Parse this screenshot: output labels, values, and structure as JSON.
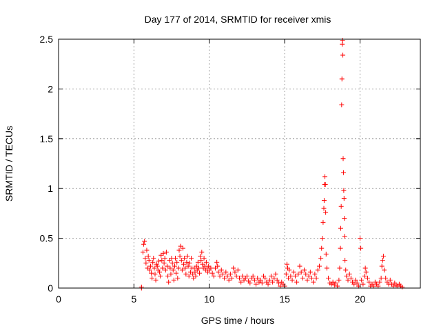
{
  "chart_data": {
    "type": "scatter",
    "title": "Day 177 of 2014, SRMTID for receiver xmis",
    "xlabel": "GPS time / hours",
    "ylabel": "SRMTID / TECUs",
    "xlim": [
      0,
      24
    ],
    "ylim": [
      0,
      2.5
    ],
    "grid": true,
    "marker": "+",
    "xticks": [
      0,
      5,
      10,
      15,
      20
    ],
    "xtick_labels": [
      "0",
      "5",
      "10",
      "15",
      "20"
    ],
    "yticks": [
      0,
      0.5,
      1,
      1.5,
      2,
      2.5
    ],
    "ytick_labels": [
      "0",
      "0.5",
      "1",
      "1.5",
      "2",
      "2.5"
    ],
    "series": [
      {
        "name": "SRMTID",
        "color": "#ff0000",
        "points": [
          [
            5.5,
            0.0
          ],
          [
            5.5,
            0.01
          ],
          [
            5.6,
            0.36
          ],
          [
            5.65,
            0.44
          ],
          [
            5.7,
            0.47
          ],
          [
            5.75,
            0.3
          ],
          [
            5.8,
            0.25
          ],
          [
            5.85,
            0.38
          ],
          [
            5.9,
            0.2
          ],
          [
            5.95,
            0.32
          ],
          [
            6.0,
            0.28
          ],
          [
            6.05,
            0.18
          ],
          [
            6.1,
            0.22
          ],
          [
            6.15,
            0.15
          ],
          [
            6.2,
            0.1
          ],
          [
            6.25,
            0.26
          ],
          [
            6.3,
            0.3
          ],
          [
            6.35,
            0.2
          ],
          [
            6.4,
            0.14
          ],
          [
            6.45,
            0.08
          ],
          [
            6.5,
            0.24
          ],
          [
            6.55,
            0.22
          ],
          [
            6.6,
            0.18
          ],
          [
            6.65,
            0.27
          ],
          [
            6.7,
            0.16
          ],
          [
            6.75,
            0.12
          ],
          [
            6.8,
            0.33
          ],
          [
            6.85,
            0.28
          ],
          [
            6.9,
            0.2
          ],
          [
            6.95,
            0.35
          ],
          [
            7.0,
            0.25
          ],
          [
            7.05,
            0.3
          ],
          [
            7.1,
            0.18
          ],
          [
            7.15,
            0.36
          ],
          [
            7.2,
            0.22
          ],
          [
            7.25,
            0.12
          ],
          [
            7.3,
            0.06
          ],
          [
            7.35,
            0.28
          ],
          [
            7.4,
            0.2
          ],
          [
            7.45,
            0.14
          ],
          [
            7.5,
            0.3
          ],
          [
            7.55,
            0.25
          ],
          [
            7.6,
            0.18
          ],
          [
            7.65,
            0.08
          ],
          [
            7.7,
            0.22
          ],
          [
            7.75,
            0.3
          ],
          [
            7.8,
            0.15
          ],
          [
            7.85,
            0.26
          ],
          [
            7.9,
            0.1
          ],
          [
            7.95,
            0.2
          ],
          [
            8.0,
            0.38
          ],
          [
            8.05,
            0.32
          ],
          [
            8.1,
            0.42
          ],
          [
            8.15,
            0.28
          ],
          [
            8.2,
            0.18
          ],
          [
            8.25,
            0.4
          ],
          [
            8.3,
            0.24
          ],
          [
            8.35,
            0.3
          ],
          [
            8.4,
            0.2
          ],
          [
            8.45,
            0.14
          ],
          [
            8.5,
            0.26
          ],
          [
            8.55,
            0.32
          ],
          [
            8.6,
            0.22
          ],
          [
            8.65,
            0.12
          ],
          [
            8.7,
            0.25
          ],
          [
            8.75,
            0.16
          ],
          [
            8.8,
            0.3
          ],
          [
            8.85,
            0.2
          ],
          [
            8.9,
            0.14
          ],
          [
            8.95,
            0.1
          ],
          [
            9.0,
            0.2
          ],
          [
            9.05,
            0.16
          ],
          [
            9.1,
            0.12
          ],
          [
            9.15,
            0.22
          ],
          [
            9.2,
            0.18
          ],
          [
            9.25,
            0.26
          ],
          [
            9.3,
            0.2
          ],
          [
            9.35,
            0.15
          ],
          [
            9.4,
            0.32
          ],
          [
            9.45,
            0.28
          ],
          [
            9.5,
            0.36
          ],
          [
            9.55,
            0.24
          ],
          [
            9.6,
            0.2
          ],
          [
            9.65,
            0.3
          ],
          [
            9.7,
            0.22
          ],
          [
            9.75,
            0.18
          ],
          [
            9.8,
            0.26
          ],
          [
            9.85,
            0.2
          ],
          [
            9.9,
            0.16
          ],
          [
            9.95,
            0.22
          ],
          [
            10.0,
            0.18
          ],
          [
            10.1,
            0.2
          ],
          [
            10.2,
            0.15
          ],
          [
            10.3,
            0.12
          ],
          [
            10.4,
            0.2
          ],
          [
            10.5,
            0.26
          ],
          [
            10.55,
            0.22
          ],
          [
            10.6,
            0.16
          ],
          [
            10.7,
            0.12
          ],
          [
            10.8,
            0.18
          ],
          [
            10.9,
            0.14
          ],
          [
            11.0,
            0.1
          ],
          [
            11.1,
            0.16
          ],
          [
            11.2,
            0.12
          ],
          [
            11.3,
            0.08
          ],
          [
            11.4,
            0.14
          ],
          [
            11.5,
            0.1
          ],
          [
            11.6,
            0.2
          ],
          [
            11.7,
            0.16
          ],
          [
            11.8,
            0.12
          ],
          [
            11.9,
            0.18
          ],
          [
            12.0,
            0.1
          ],
          [
            12.1,
            0.06
          ],
          [
            12.2,
            0.12
          ],
          [
            12.3,
            0.08
          ],
          [
            12.4,
            0.1
          ],
          [
            12.5,
            0.12
          ],
          [
            12.6,
            0.07
          ],
          [
            12.7,
            0.05
          ],
          [
            12.8,
            0.1
          ],
          [
            12.9,
            0.12
          ],
          [
            13.0,
            0.08
          ],
          [
            13.1,
            0.04
          ],
          [
            13.2,
            0.1
          ],
          [
            13.3,
            0.06
          ],
          [
            13.4,
            0.08
          ],
          [
            13.5,
            0.05
          ],
          [
            13.6,
            0.12
          ],
          [
            13.7,
            0.1
          ],
          [
            13.8,
            0.06
          ],
          [
            13.9,
            0.04
          ],
          [
            14.0,
            0.08
          ],
          [
            14.1,
            0.12
          ],
          [
            14.2,
            0.06
          ],
          [
            14.3,
            0.1
          ],
          [
            14.4,
            0.14
          ],
          [
            14.5,
            0.08
          ],
          [
            14.6,
            0.05
          ],
          [
            14.7,
            0.02
          ],
          [
            14.8,
            0.06
          ],
          [
            14.9,
            0.04
          ],
          [
            15.0,
            0.02
          ],
          [
            15.1,
            0.14
          ],
          [
            15.15,
            0.24
          ],
          [
            15.2,
            0.2
          ],
          [
            15.25,
            0.1
          ],
          [
            15.3,
            0.18
          ],
          [
            15.4,
            0.12
          ],
          [
            15.5,
            0.08
          ],
          [
            15.6,
            0.16
          ],
          [
            15.7,
            0.12
          ],
          [
            15.8,
            0.06
          ],
          [
            15.9,
            0.14
          ],
          [
            16.0,
            0.22
          ],
          [
            16.1,
            0.16
          ],
          [
            16.2,
            0.1
          ],
          [
            16.3,
            0.18
          ],
          [
            16.4,
            0.14
          ],
          [
            16.5,
            0.08
          ],
          [
            16.6,
            0.12
          ],
          [
            16.7,
            0.16
          ],
          [
            16.8,
            0.1
          ],
          [
            16.9,
            0.06
          ],
          [
            17.0,
            0.14
          ],
          [
            17.1,
            0.1
          ],
          [
            17.2,
            0.18
          ],
          [
            17.3,
            0.22
          ],
          [
            17.4,
            0.3
          ],
          [
            17.45,
            0.4
          ],
          [
            17.5,
            0.5
          ],
          [
            17.55,
            0.66
          ],
          [
            17.6,
            0.8
          ],
          [
            17.62,
            0.88
          ],
          [
            17.65,
            1.04
          ],
          [
            17.67,
            1.12
          ],
          [
            17.7,
            1.04
          ],
          [
            17.72,
            0.76
          ],
          [
            17.75,
            0.34
          ],
          [
            17.8,
            0.2
          ],
          [
            17.9,
            0.1
          ],
          [
            18.0,
            0.05
          ],
          [
            18.1,
            0.04
          ],
          [
            18.2,
            0.06
          ],
          [
            18.3,
            0.03
          ],
          [
            18.4,
            0.05
          ],
          [
            18.5,
            0.02
          ],
          [
            18.6,
            0.08
          ],
          [
            18.65,
            0.2
          ],
          [
            18.7,
            0.4
          ],
          [
            18.72,
            0.6
          ],
          [
            18.75,
            0.82
          ],
          [
            18.78,
            1.84
          ],
          [
            18.8,
            2.1
          ],
          [
            18.82,
            2.45
          ],
          [
            18.84,
            2.49
          ],
          [
            18.86,
            2.34
          ],
          [
            18.88,
            1.3
          ],
          [
            18.9,
            1.16
          ],
          [
            18.92,
            0.98
          ],
          [
            18.94,
            0.9
          ],
          [
            18.96,
            0.7
          ],
          [
            18.98,
            0.52
          ],
          [
            19.0,
            0.28
          ],
          [
            19.05,
            0.18
          ],
          [
            19.1,
            0.12
          ],
          [
            19.2,
            0.08
          ],
          [
            19.3,
            0.14
          ],
          [
            19.4,
            0.1
          ],
          [
            19.5,
            0.06
          ],
          [
            19.6,
            0.04
          ],
          [
            19.7,
            0.08
          ],
          [
            19.8,
            0.05
          ],
          [
            19.9,
            0.02
          ],
          [
            20.0,
            0.5
          ],
          [
            20.05,
            0.4
          ],
          [
            20.1,
            0.08
          ],
          [
            20.2,
            0.04
          ],
          [
            20.3,
            0.12
          ],
          [
            20.35,
            0.2
          ],
          [
            20.4,
            0.16
          ],
          [
            20.5,
            0.1
          ],
          [
            20.6,
            0.06
          ],
          [
            20.7,
            0.02
          ],
          [
            20.8,
            0.04
          ],
          [
            20.9,
            0.02
          ],
          [
            21.0,
            0.06
          ],
          [
            21.1,
            0.04
          ],
          [
            21.2,
            0.02
          ],
          [
            21.3,
            0.06
          ],
          [
            21.4,
            0.1
          ],
          [
            21.45,
            0.22
          ],
          [
            21.5,
            0.28
          ],
          [
            21.55,
            0.32
          ],
          [
            21.6,
            0.18
          ],
          [
            21.7,
            0.1
          ],
          [
            21.8,
            0.06
          ],
          [
            21.9,
            0.04
          ],
          [
            22.0,
            0.08
          ],
          [
            22.1,
            0.04
          ],
          [
            22.2,
            0.02
          ],
          [
            22.3,
            0.05
          ],
          [
            22.4,
            0.03
          ],
          [
            22.5,
            0.02
          ],
          [
            22.6,
            0.04
          ],
          [
            22.7,
            0.02
          ],
          [
            22.8,
            0.01
          ]
        ]
      }
    ]
  }
}
